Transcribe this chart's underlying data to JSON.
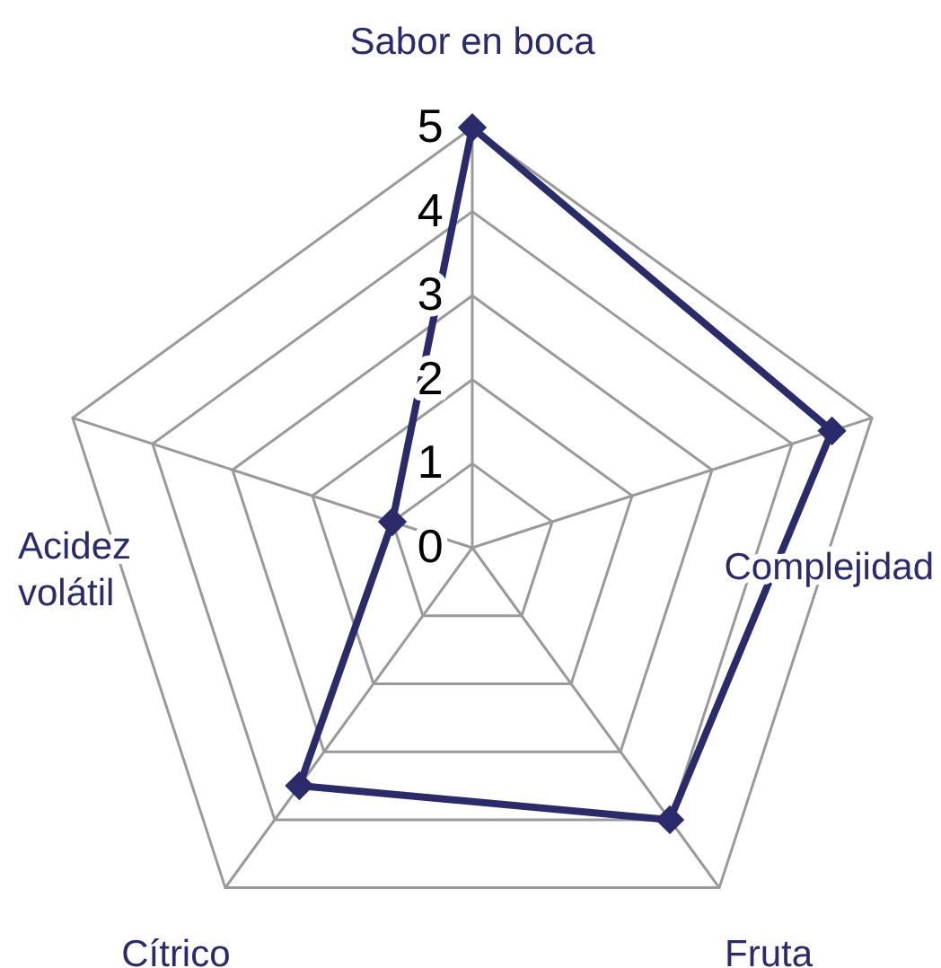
{
  "chart_data": {
    "type": "radar",
    "categories": [
      "Sabor en boca",
      "Complejidad",
      "Fruta",
      "Cítrico",
      "Acidez volátil"
    ],
    "series": [
      {
        "color": "#2b2a6b",
        "values": [
          5,
          4.5,
          4,
          3.5,
          1
        ]
      }
    ],
    "ylim": [
      0,
      5
    ],
    "yticks": [
      0,
      1,
      2,
      3,
      4,
      5
    ],
    "grid": true,
    "marker": "diamond",
    "line_style": "solid"
  }
}
